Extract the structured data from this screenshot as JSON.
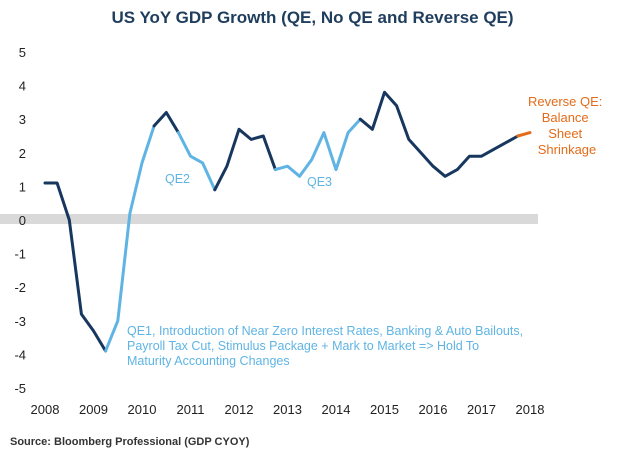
{
  "chart_data": {
    "type": "line",
    "title": "US YoY GDP Growth (QE, No QE and Reverse QE)",
    "source": "Source: Bloomberg Professional (GDP CYOY)",
    "xlim": [
      2008,
      2018
    ],
    "ylim": [
      -5,
      5
    ],
    "x_ticks": [
      "2008",
      "2009",
      "2010",
      "2011",
      "2012",
      "2013",
      "2014",
      "2015",
      "2016",
      "2017",
      "2018"
    ],
    "y_ticks": [
      "5",
      "4",
      "3",
      "2",
      "1",
      "0",
      "-1",
      "-2",
      "-3",
      "-4",
      "-5"
    ],
    "zero_band": true,
    "colors": {
      "no_qe": "#17375e",
      "qe": "#5fb4e4",
      "reverse_qe": "#e46c1a",
      "zero_band": "#d9d9d9",
      "title": "#1f3d5c"
    },
    "points": [
      {
        "x": 2008.0,
        "y": 1.1
      },
      {
        "x": 2008.25,
        "y": 1.1
      },
      {
        "x": 2008.5,
        "y": 0.0
      },
      {
        "x": 2008.75,
        "y": -2.8
      },
      {
        "x": 2009.0,
        "y": -3.3
      },
      {
        "x": 2009.25,
        "y": -3.9
      },
      {
        "x": 2009.5,
        "y": -3.0
      },
      {
        "x": 2009.75,
        "y": 0.2
      },
      {
        "x": 2010.0,
        "y": 1.7
      },
      {
        "x": 2010.25,
        "y": 2.8
      },
      {
        "x": 2010.5,
        "y": 3.2
      },
      {
        "x": 2010.75,
        "y": 2.6
      },
      {
        "x": 2011.0,
        "y": 1.9
      },
      {
        "x": 2011.25,
        "y": 1.7
      },
      {
        "x": 2011.5,
        "y": 0.9
      },
      {
        "x": 2011.75,
        "y": 1.6
      },
      {
        "x": 2012.0,
        "y": 2.7
      },
      {
        "x": 2012.25,
        "y": 2.4
      },
      {
        "x": 2012.5,
        "y": 2.5
      },
      {
        "x": 2012.75,
        "y": 1.5
      },
      {
        "x": 2013.0,
        "y": 1.6
      },
      {
        "x": 2013.25,
        "y": 1.3
      },
      {
        "x": 2013.5,
        "y": 1.8
      },
      {
        "x": 2013.75,
        "y": 2.6
      },
      {
        "x": 2014.0,
        "y": 1.5
      },
      {
        "x": 2014.25,
        "y": 2.6
      },
      {
        "x": 2014.5,
        "y": 3.0
      },
      {
        "x": 2014.75,
        "y": 2.7
      },
      {
        "x": 2015.0,
        "y": 3.8
      },
      {
        "x": 2015.25,
        "y": 3.4
      },
      {
        "x": 2015.5,
        "y": 2.4
      },
      {
        "x": 2015.75,
        "y": 2.0
      },
      {
        "x": 2016.0,
        "y": 1.6
      },
      {
        "x": 2016.25,
        "y": 1.3
      },
      {
        "x": 2016.5,
        "y": 1.5
      },
      {
        "x": 2016.75,
        "y": 1.9
      },
      {
        "x": 2017.0,
        "y": 1.9
      },
      {
        "x": 2017.25,
        "y": 2.1
      },
      {
        "x": 2017.5,
        "y": 2.3
      },
      {
        "x": 2017.75,
        "y": 2.5
      },
      {
        "x": 2018.0,
        "y": 2.6
      }
    ],
    "segments": [
      {
        "phase": "no_qe",
        "from": 0,
        "to": 5
      },
      {
        "phase": "qe",
        "from": 5,
        "to": 9
      },
      {
        "phase": "no_qe",
        "from": 9,
        "to": 11
      },
      {
        "phase": "qe",
        "from": 11,
        "to": 14
      },
      {
        "phase": "no_qe",
        "from": 14,
        "to": 19
      },
      {
        "phase": "qe",
        "from": 19,
        "to": 26
      },
      {
        "phase": "no_qe",
        "from": 26,
        "to": 39
      },
      {
        "phase": "reverse_qe",
        "from": 39,
        "to": 40
      }
    ],
    "annotations": {
      "qe1": [
        "QE1, Introduction of Near Zero Interest Rates, Banking & Auto Bailouts,",
        "Payroll Tax Cut, Stimulus Package + Mark to Market => Hold To",
        "Maturity Accounting Changes"
      ],
      "qe2": "QE2",
      "qe3": "QE3",
      "reverse_qe": [
        "Reverse QE:",
        "Balance",
        "Sheet",
        "Shrinkage"
      ]
    }
  }
}
